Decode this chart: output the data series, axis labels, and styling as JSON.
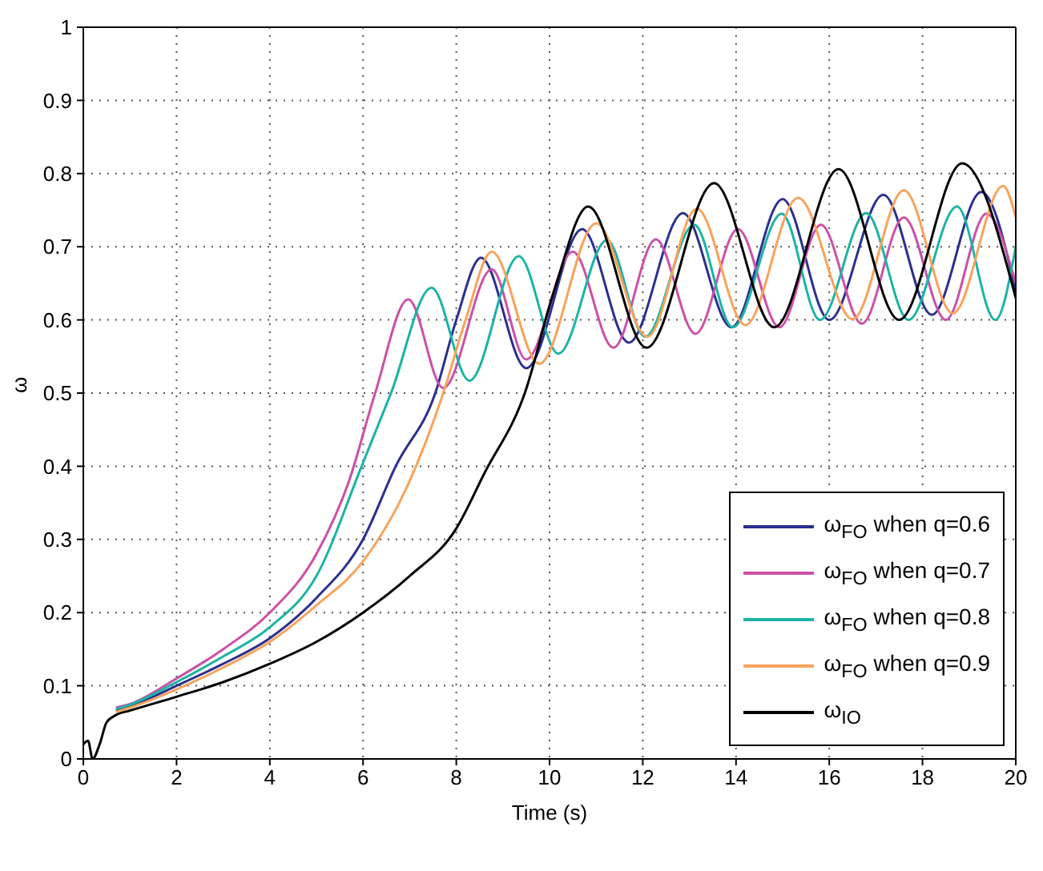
{
  "chart_data": {
    "type": "line",
    "xlabel": "Time (s)",
    "ylabel": "ω",
    "xlim": [
      0,
      20
    ],
    "xticks": [
      0,
      2,
      4,
      6,
      8,
      10,
      12,
      14,
      16,
      18,
      20
    ],
    "ylim": [
      0,
      1
    ],
    "yticks": [
      0,
      0.1,
      0.2,
      0.3,
      0.4,
      0.5,
      0.6,
      0.7,
      0.8,
      0.9,
      1
    ],
    "grid": true,
    "legend": "bottom right",
    "marker": "none",
    "line_style": "solid",
    "series": [
      {
        "name": "ω$_{FO}$ when q=0.6",
        "color": "#2b2f8f",
        "x": [
          0.7,
          1,
          2,
          3,
          4,
          5,
          6,
          6.7,
          7.55,
          8,
          8.53,
          9.5,
          10.7,
          11.7,
          12.86,
          13.9,
          15,
          16,
          17.16,
          18.2,
          19.26,
          20
        ],
        "values": [
          0.067,
          0.072,
          0.1,
          0.13,
          0.165,
          0.22,
          0.3,
          0.4,
          0.5,
          0.6,
          0.685,
          0.534,
          0.724,
          0.569,
          0.746,
          0.59,
          0.765,
          0.6,
          0.771,
          0.607,
          0.775,
          0.64
        ]
      },
      {
        "name": "ω$_{FO}$ when q=0.7",
        "color": "#cc4fa8",
        "x": [
          0.7,
          1,
          2,
          3,
          4,
          5,
          5.7,
          6.26,
          6.97,
          7.72,
          8.76,
          9.5,
          10.5,
          11.37,
          12.28,
          13.13,
          14.04,
          14.93,
          15.82,
          16.7,
          17.6,
          18.5,
          19.37,
          20
        ],
        "values": [
          0.07,
          0.075,
          0.11,
          0.15,
          0.2,
          0.28,
          0.38,
          0.5,
          0.628,
          0.507,
          0.669,
          0.546,
          0.693,
          0.562,
          0.71,
          0.581,
          0.724,
          0.59,
          0.73,
          0.595,
          0.74,
          0.6,
          0.745,
          0.65
        ]
      },
      {
        "name": "ω$_{FO}$ when q=0.8",
        "color": "#1bb3a4",
        "x": [
          0.7,
          1,
          2,
          3,
          4,
          5,
          5.97,
          6.6,
          7.47,
          8.28,
          9.34,
          10.19,
          11.23,
          12.05,
          13.1,
          13.93,
          14.98,
          15.8,
          16.79,
          17.7,
          18.74,
          19.56,
          20
        ],
        "values": [
          0.068,
          0.074,
          0.105,
          0.14,
          0.18,
          0.25,
          0.4,
          0.5,
          0.644,
          0.517,
          0.687,
          0.554,
          0.709,
          0.577,
          0.73,
          0.59,
          0.745,
          0.6,
          0.746,
          0.6,
          0.755,
          0.6,
          0.7
        ]
      },
      {
        "name": "ω$_{FO}$ when q=0.9",
        "color": "#f9a25a",
        "x": [
          0.7,
          1,
          2,
          3,
          4,
          5,
          6,
          7,
          7.72,
          8.2,
          8.76,
          9.78,
          11,
          12.1,
          13.16,
          14.2,
          15.33,
          16.5,
          17.6,
          18.65,
          19.73,
          20
        ],
        "values": [
          0.064,
          0.07,
          0.095,
          0.125,
          0.16,
          0.21,
          0.27,
          0.38,
          0.5,
          0.6,
          0.693,
          0.54,
          0.732,
          0.577,
          0.752,
          0.593,
          0.767,
          0.601,
          0.777,
          0.609,
          0.783,
          0.74
        ]
      },
      {
        "name": "ω$_{IO}$",
        "color": "#000000",
        "x": [
          0,
          0.1,
          0.2,
          0.35,
          0.5,
          0.7,
          1,
          2,
          3,
          4,
          5,
          6,
          7,
          8,
          8.6,
          9.47,
          10.1,
          10.83,
          12.08,
          13.53,
          14.82,
          16.2,
          17.5,
          18.85,
          20
        ],
        "values": [
          0.02,
          0.025,
          0,
          0.02,
          0.05,
          0.06,
          0.066,
          0.085,
          0.105,
          0.13,
          0.16,
          0.2,
          0.25,
          0.315,
          0.39,
          0.5,
          0.64,
          0.755,
          0.562,
          0.787,
          0.59,
          0.806,
          0.6,
          0.814,
          0.63
        ]
      }
    ]
  }
}
